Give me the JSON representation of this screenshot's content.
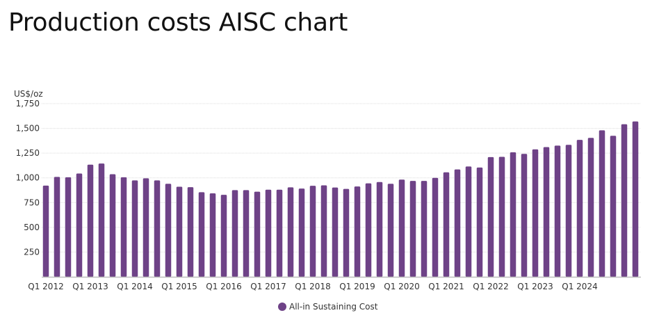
{
  "page": {
    "title": "Production costs AISC chart"
  },
  "chart_data": {
    "type": "bar",
    "title": "Production costs AISC chart",
    "xlabel": "",
    "ylabel": "US$/oz",
    "ylim": [
      0,
      1750
    ],
    "yticks": [
      250,
      500,
      750,
      1000,
      1250,
      1500,
      1750
    ],
    "ytick_labels": [
      "250",
      "500",
      "750",
      "1,000",
      "1,250",
      "1,500",
      "1,750"
    ],
    "grid": true,
    "legend_position": "bottom-center",
    "bar_color": "#6e4287",
    "categories": [
      "Q1 2012",
      "Q2 2012",
      "Q3 2012",
      "Q4 2012",
      "Q1 2013",
      "Q2 2013",
      "Q3 2013",
      "Q4 2013",
      "Q1 2014",
      "Q2 2014",
      "Q3 2014",
      "Q4 2014",
      "Q1 2015",
      "Q2 2015",
      "Q3 2015",
      "Q4 2015",
      "Q1 2016",
      "Q2 2016",
      "Q3 2016",
      "Q4 2016",
      "Q1 2017",
      "Q2 2017",
      "Q3 2017",
      "Q4 2017",
      "Q1 2018",
      "Q2 2018",
      "Q3 2018",
      "Q4 2018",
      "Q1 2019",
      "Q2 2019",
      "Q3 2019",
      "Q4 2019",
      "Q1 2020",
      "Q2 2020",
      "Q3 2020",
      "Q4 2020",
      "Q1 2021",
      "Q2 2021",
      "Q3 2021",
      "Q4 2021",
      "Q1 2022",
      "Q2 2022",
      "Q3 2022",
      "Q4 2022",
      "Q1 2023",
      "Q2 2023",
      "Q3 2023",
      "Q4 2023",
      "Q1 2024",
      "Q2 2024",
      "Q3 2024",
      "Q4 2024",
      "Q1 2025",
      "Q2 2025"
    ],
    "xtick_labels": [
      "Q1 2012",
      "Q1 2013",
      "Q1 2014",
      "Q1 2015",
      "Q1 2016",
      "Q1 2017",
      "Q1 2018",
      "Q1 2019",
      "Q1 2020",
      "Q1 2021",
      "Q1 2022",
      "Q1 2023",
      "Q1 2024"
    ],
    "series": [
      {
        "name": "All-in Sustaining Cost",
        "values": [
          922,
          1009,
          1006,
          1044,
          1133,
          1145,
          1037,
          1006,
          974,
          995,
          974,
          940,
          910,
          906,
          855,
          843,
          828,
          876,
          876,
          860,
          880,
          880,
          904,
          892,
          920,
          924,
          902,
          888,
          913,
          944,
          958,
          940,
          982,
          969,
          969,
          1000,
          1056,
          1085,
          1115,
          1104,
          1210,
          1212,
          1258,
          1242,
          1288,
          1311,
          1326,
          1334,
          1384,
          1404,
          1480,
          1425,
          1542,
          1570
        ]
      }
    ]
  }
}
